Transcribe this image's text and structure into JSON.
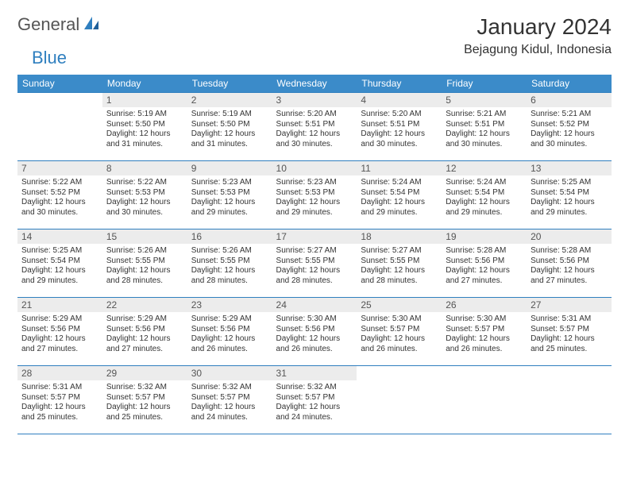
{
  "logo": {
    "part1": "General",
    "part2": "Blue"
  },
  "title": "January 2024",
  "location": "Bejagung Kidul, Indonesia",
  "colors": {
    "header_bg": "#3b8bc9",
    "header_text": "#ffffff",
    "border": "#2f7fbf",
    "daynum_bg": "#ececec",
    "logo_grey": "#555555",
    "logo_blue": "#2f7fbf"
  },
  "weekdays": [
    "Sunday",
    "Monday",
    "Tuesday",
    "Wednesday",
    "Thursday",
    "Friday",
    "Saturday"
  ],
  "weeks": [
    [
      null,
      {
        "n": "1",
        "sr": "5:19 AM",
        "ss": "5:50 PM",
        "dl": "12 hours and 31 minutes."
      },
      {
        "n": "2",
        "sr": "5:19 AM",
        "ss": "5:50 PM",
        "dl": "12 hours and 31 minutes."
      },
      {
        "n": "3",
        "sr": "5:20 AM",
        "ss": "5:51 PM",
        "dl": "12 hours and 30 minutes."
      },
      {
        "n": "4",
        "sr": "5:20 AM",
        "ss": "5:51 PM",
        "dl": "12 hours and 30 minutes."
      },
      {
        "n": "5",
        "sr": "5:21 AM",
        "ss": "5:51 PM",
        "dl": "12 hours and 30 minutes."
      },
      {
        "n": "6",
        "sr": "5:21 AM",
        "ss": "5:52 PM",
        "dl": "12 hours and 30 minutes."
      }
    ],
    [
      {
        "n": "7",
        "sr": "5:22 AM",
        "ss": "5:52 PM",
        "dl": "12 hours and 30 minutes."
      },
      {
        "n": "8",
        "sr": "5:22 AM",
        "ss": "5:53 PM",
        "dl": "12 hours and 30 minutes."
      },
      {
        "n": "9",
        "sr": "5:23 AM",
        "ss": "5:53 PM",
        "dl": "12 hours and 29 minutes."
      },
      {
        "n": "10",
        "sr": "5:23 AM",
        "ss": "5:53 PM",
        "dl": "12 hours and 29 minutes."
      },
      {
        "n": "11",
        "sr": "5:24 AM",
        "ss": "5:54 PM",
        "dl": "12 hours and 29 minutes."
      },
      {
        "n": "12",
        "sr": "5:24 AM",
        "ss": "5:54 PM",
        "dl": "12 hours and 29 minutes."
      },
      {
        "n": "13",
        "sr": "5:25 AM",
        "ss": "5:54 PM",
        "dl": "12 hours and 29 minutes."
      }
    ],
    [
      {
        "n": "14",
        "sr": "5:25 AM",
        "ss": "5:54 PM",
        "dl": "12 hours and 29 minutes."
      },
      {
        "n": "15",
        "sr": "5:26 AM",
        "ss": "5:55 PM",
        "dl": "12 hours and 28 minutes."
      },
      {
        "n": "16",
        "sr": "5:26 AM",
        "ss": "5:55 PM",
        "dl": "12 hours and 28 minutes."
      },
      {
        "n": "17",
        "sr": "5:27 AM",
        "ss": "5:55 PM",
        "dl": "12 hours and 28 minutes."
      },
      {
        "n": "18",
        "sr": "5:27 AM",
        "ss": "5:55 PM",
        "dl": "12 hours and 28 minutes."
      },
      {
        "n": "19",
        "sr": "5:28 AM",
        "ss": "5:56 PM",
        "dl": "12 hours and 27 minutes."
      },
      {
        "n": "20",
        "sr": "5:28 AM",
        "ss": "5:56 PM",
        "dl": "12 hours and 27 minutes."
      }
    ],
    [
      {
        "n": "21",
        "sr": "5:29 AM",
        "ss": "5:56 PM",
        "dl": "12 hours and 27 minutes."
      },
      {
        "n": "22",
        "sr": "5:29 AM",
        "ss": "5:56 PM",
        "dl": "12 hours and 27 minutes."
      },
      {
        "n": "23",
        "sr": "5:29 AM",
        "ss": "5:56 PM",
        "dl": "12 hours and 26 minutes."
      },
      {
        "n": "24",
        "sr": "5:30 AM",
        "ss": "5:56 PM",
        "dl": "12 hours and 26 minutes."
      },
      {
        "n": "25",
        "sr": "5:30 AM",
        "ss": "5:57 PM",
        "dl": "12 hours and 26 minutes."
      },
      {
        "n": "26",
        "sr": "5:30 AM",
        "ss": "5:57 PM",
        "dl": "12 hours and 26 minutes."
      },
      {
        "n": "27",
        "sr": "5:31 AM",
        "ss": "5:57 PM",
        "dl": "12 hours and 25 minutes."
      }
    ],
    [
      {
        "n": "28",
        "sr": "5:31 AM",
        "ss": "5:57 PM",
        "dl": "12 hours and 25 minutes."
      },
      {
        "n": "29",
        "sr": "5:32 AM",
        "ss": "5:57 PM",
        "dl": "12 hours and 25 minutes."
      },
      {
        "n": "30",
        "sr": "5:32 AM",
        "ss": "5:57 PM",
        "dl": "12 hours and 24 minutes."
      },
      {
        "n": "31",
        "sr": "5:32 AM",
        "ss": "5:57 PM",
        "dl": "12 hours and 24 minutes."
      },
      null,
      null,
      null
    ]
  ],
  "labels": {
    "sunrise": "Sunrise:",
    "sunset": "Sunset:",
    "daylight": "Daylight:"
  }
}
